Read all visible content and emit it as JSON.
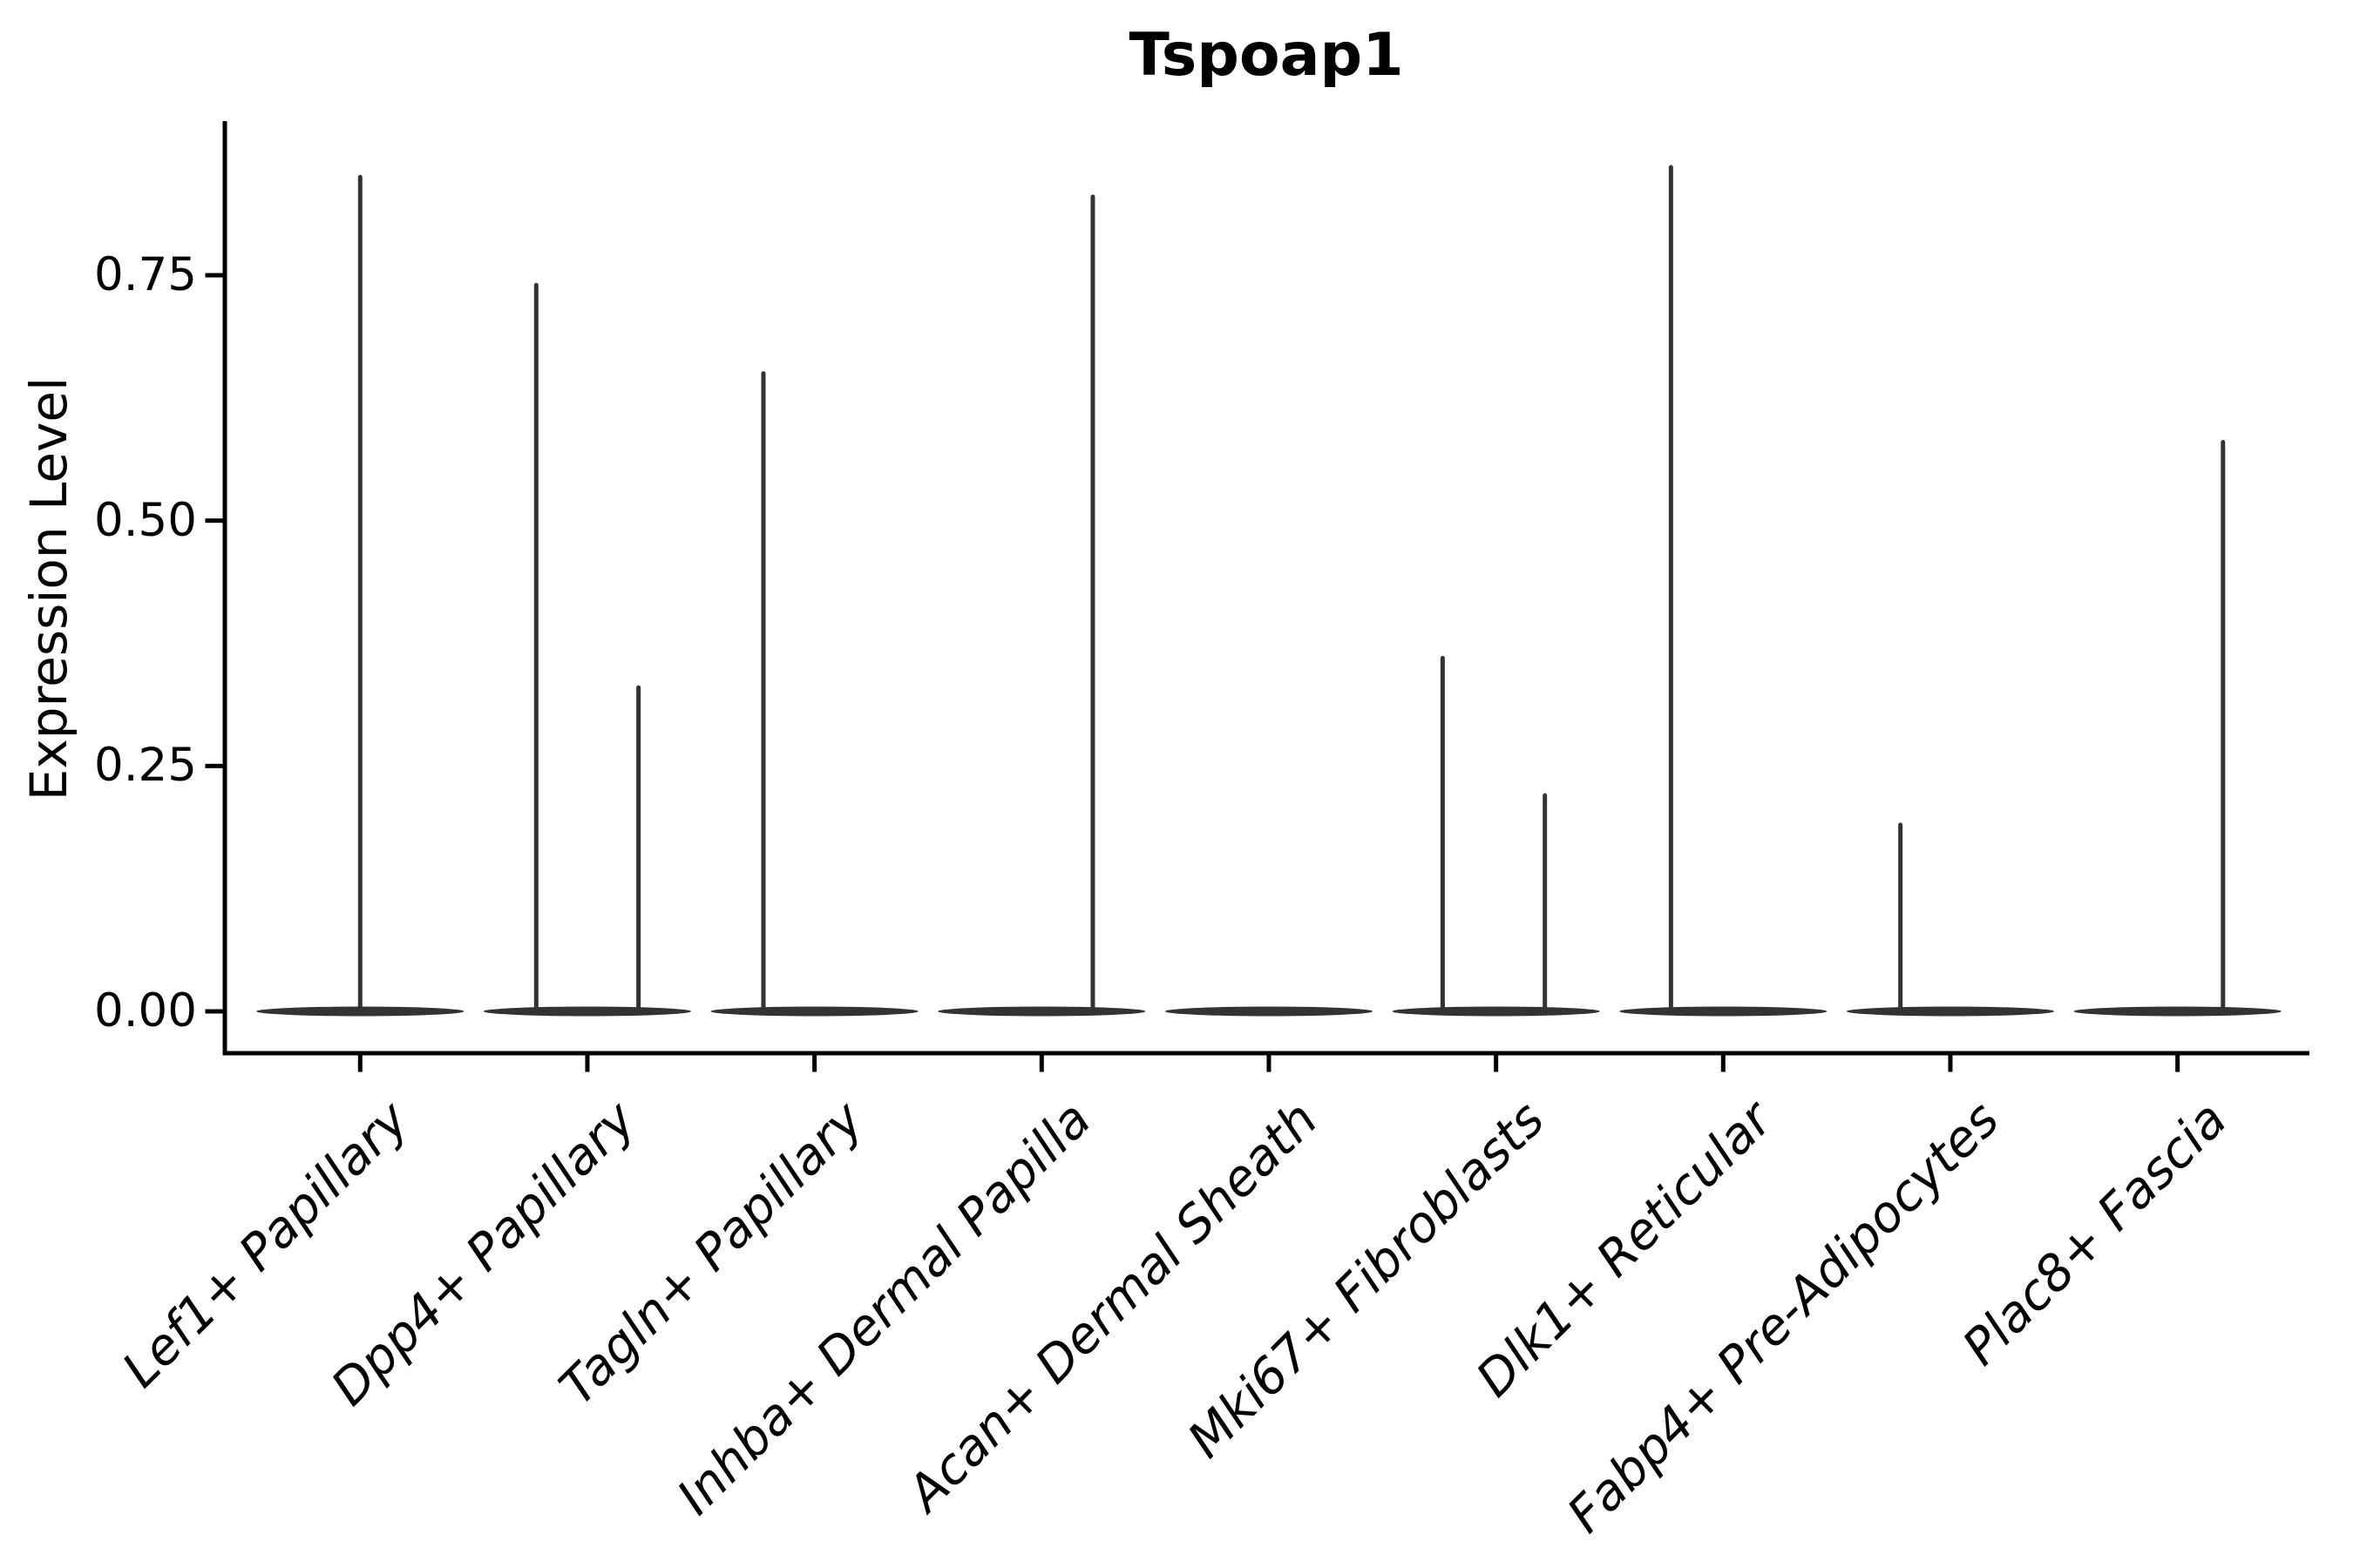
{
  "chart_data": {
    "type": "violin",
    "title": "Tspoap1",
    "ylabel": "Expression Level",
    "xlabel": "",
    "ylim": [
      -0.04,
      0.91
    ],
    "grid": false,
    "legend": "none",
    "violin_color": "#333333",
    "axis_color": "#000000",
    "yticks": [
      {
        "value": 0.0,
        "label": "0.00"
      },
      {
        "value": 0.25,
        "label": "0.25"
      },
      {
        "value": 0.5,
        "label": "0.50"
      },
      {
        "value": 0.75,
        "label": "0.75"
      }
    ],
    "categories": [
      {
        "label": "Lef1+ Papillary",
        "max_expression": 0.85,
        "spikes": [
          {
            "x_offset_frac": 0.0,
            "peak": 0.85
          }
        ]
      },
      {
        "label": "Dpp4+ Papillary",
        "max_expression": 0.74,
        "spikes": [
          {
            "x_offset_frac": -0.225,
            "peak": 0.74
          },
          {
            "x_offset_frac": 0.225,
            "peak": 0.33
          }
        ]
      },
      {
        "label": "Tagln+ Papillary",
        "max_expression": 0.65,
        "spikes": [
          {
            "x_offset_frac": -0.225,
            "peak": 0.65
          }
        ]
      },
      {
        "label": "Inhba+ Dermal Papilla",
        "max_expression": 0.83,
        "spikes": [
          {
            "x_offset_frac": 0.225,
            "peak": 0.83
          }
        ]
      },
      {
        "label": "Acan+ Dermal Sheath",
        "max_expression": 0.0,
        "spikes": []
      },
      {
        "label": "Mki67+ Fibroblasts",
        "max_expression": 0.36,
        "spikes": [
          {
            "x_offset_frac": -0.235,
            "peak": 0.36
          },
          {
            "x_offset_frac": 0.215,
            "peak": 0.22
          }
        ]
      },
      {
        "label": "Dlk1+ Reticular",
        "max_expression": 0.86,
        "spikes": [
          {
            "x_offset_frac": -0.23,
            "peak": 0.86
          }
        ]
      },
      {
        "label": "Fabp4+ Pre-Adipocytes",
        "max_expression": 0.19,
        "spikes": [
          {
            "x_offset_frac": -0.22,
            "peak": 0.19
          }
        ]
      },
      {
        "label": "Plac8+ Fascia",
        "max_expression": 0.58,
        "spikes": [
          {
            "x_offset_frac": 0.2,
            "peak": 0.58
          }
        ]
      }
    ]
  }
}
